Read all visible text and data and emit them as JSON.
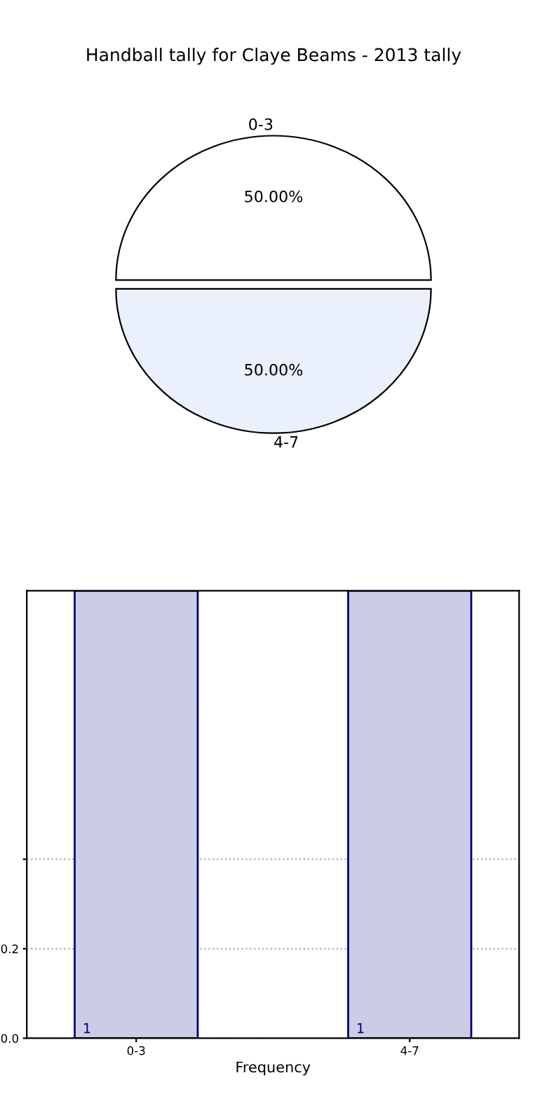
{
  "chart_data": [
    {
      "type": "pie",
      "title": "Handball tally for Claye Beams - 2013 tally",
      "categories": [
        "0-3",
        "4-7"
      ],
      "values": [
        50,
        50
      ],
      "colors": [
        "#ffffff",
        "#eaf0fc"
      ],
      "value_labels": [
        "50.00%",
        "50.00%"
      ]
    },
    {
      "type": "bar",
      "categories": [
        "0-3",
        "4-7"
      ],
      "values": [
        1,
        1
      ],
      "color": "#ccccE4",
      "xlabel": "Frequency",
      "ylim": [
        0,
        1
      ],
      "yticks": [
        {
          "value": 0,
          "label": "0.0"
        },
        {
          "value": 0.2,
          "label": "0.2"
        },
        {
          "value": 0.4,
          "label": null
        }
      ],
      "grid": true,
      "data_labels": true
    }
  ]
}
